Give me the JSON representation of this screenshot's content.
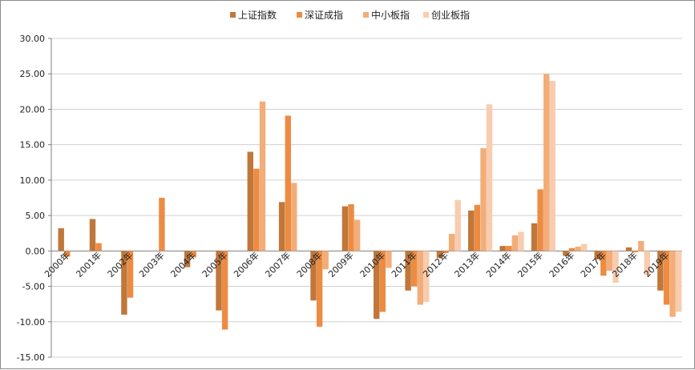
{
  "chart_data": {
    "type": "bar",
    "title": "",
    "xlabel": "",
    "ylabel": "",
    "ylim": [
      -15,
      30
    ],
    "yticks": [
      30,
      25,
      20,
      15,
      10,
      5,
      0,
      -5,
      -10,
      -15
    ],
    "ytick_labels": [
      "30.00",
      "25.00",
      "20.00",
      "15.00",
      "10.00",
      "5.00",
      "0.00",
      "-5.00",
      "-10.00",
      "-15.00"
    ],
    "grid": "horizontal",
    "legend_position": "top-center",
    "categories": [
      "2000年",
      "2001年",
      "2002年",
      "2003年",
      "2004年",
      "2005年",
      "2006年",
      "2007年",
      "2008年",
      "2009年",
      "2010年",
      "2011年",
      "2012年",
      "2013年",
      "2014年",
      "2015年",
      "2016年",
      "2017年",
      "2018年",
      "2019年"
    ],
    "series": [
      {
        "name": "上证指数",
        "color": "#c0773a",
        "values": [
          3.2,
          4.5,
          -9.0,
          0,
          -2.3,
          -8.4,
          14.0,
          6.9,
          -7.0,
          6.3,
          -9.6,
          -5.6,
          -1.0,
          5.7,
          0.7,
          3.9,
          -0.7,
          -1.2,
          0.5,
          -5.6
        ]
      },
      {
        "name": "深证成指",
        "color": "#ec8c43",
        "values": [
          -0.8,
          1.1,
          -6.6,
          7.5,
          -0.9,
          -11.1,
          11.6,
          19.1,
          -10.7,
          6.6,
          -8.6,
          -5.0,
          -0.3,
          6.5,
          0.7,
          8.7,
          0.4,
          -3.5,
          -0.2,
          -7.6
        ]
      },
      {
        "name": "中小板指",
        "color": "#f3ad79",
        "values": [
          0,
          0,
          0,
          0,
          0,
          0,
          21.1,
          9.6,
          -2.6,
          4.4,
          -2.4,
          -7.6,
          2.4,
          14.5,
          2.2,
          25.0,
          0.6,
          -2.8,
          1.4,
          -9.3
        ]
      },
      {
        "name": "创业板指",
        "color": "#f8ccae",
        "values": [
          0,
          0,
          0,
          0,
          0,
          0,
          0,
          0,
          0,
          0,
          0,
          -7.2,
          7.2,
          20.7,
          2.7,
          24.0,
          1.0,
          -4.5,
          -3.4,
          -8.6
        ]
      }
    ]
  }
}
